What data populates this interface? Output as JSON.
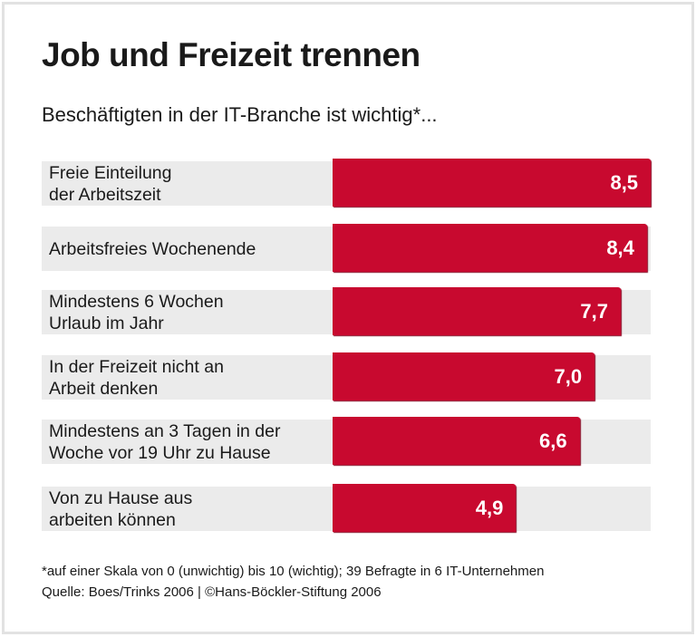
{
  "chart_data": {
    "type": "bar",
    "orientation": "horizontal",
    "title": "Job und Freizeit trennen",
    "subtitle": "Beschäftigten in der IT-Branche ist wichtig*...",
    "categories": [
      "Freie Einteilung\nder Arbeitszeit",
      "Arbeitsfreies Wochenende",
      "Mindestens 6 Wochen\nUrlaub im Jahr",
      "In der Freizeit nicht an\nArbeit denken",
      "Mindestens an 3 Tagen in der\nWoche vor 19 Uhr zu Hause",
      "Von zu Hause aus\narbeiten können"
    ],
    "values": [
      8.5,
      8.4,
      7.7,
      7.0,
      6.6,
      4.9
    ],
    "value_labels": [
      "8,5",
      "8,4",
      "7,7",
      "7,0",
      "6,6",
      "4,9"
    ],
    "xlim": [
      0,
      10
    ],
    "bar_color": "#c8092f",
    "background_color": "#ebebeb",
    "footnote": "*auf einer Skala von 0 (unwichtig) bis 10 (wichtig); 39 Befragte in 6 IT-Unternehmen",
    "source": "Quelle: Boes/Trinks 2006 | ©Hans-Böckler-Stiftung 2006"
  }
}
